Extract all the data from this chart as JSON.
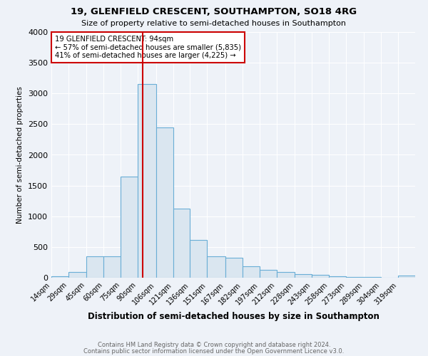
{
  "title1": "19, GLENFIELD CRESCENT, SOUTHAMPTON, SO18 4RG",
  "title2": "Size of property relative to semi-detached houses in Southampton",
  "xlabel": "Distribution of semi-detached houses by size in Southampton",
  "ylabel": "Number of semi-detached properties",
  "annotation_title": "19 GLENFIELD CRESCENT: 94sqm",
  "annotation_line1": "← 57% of semi-detached houses are smaller (5,835)",
  "annotation_line2": "41% of semi-detached houses are larger (4,225) →",
  "footnote1": "Contains HM Land Registry data © Crown copyright and database right 2024.",
  "footnote2": "Contains public sector information licensed under the Open Government Licence v3.0.",
  "property_size": 94,
  "categories": [
    "14sqm",
    "29sqm",
    "45sqm",
    "60sqm",
    "75sqm",
    "90sqm",
    "106sqm",
    "121sqm",
    "136sqm",
    "151sqm",
    "167sqm",
    "182sqm",
    "197sqm",
    "212sqm",
    "228sqm",
    "243sqm",
    "258sqm",
    "273sqm",
    "289sqm",
    "304sqm",
    "319sqm"
  ],
  "bin_edges": [
    14,
    29,
    45,
    60,
    75,
    90,
    106,
    121,
    136,
    151,
    167,
    182,
    197,
    212,
    228,
    243,
    258,
    273,
    289,
    304,
    319,
    334
  ],
  "values": [
    20,
    90,
    350,
    350,
    1650,
    3150,
    2450,
    1130,
    620,
    350,
    330,
    190,
    130,
    90,
    60,
    50,
    25,
    12,
    8,
    5,
    30
  ],
  "bar_color": "#dae6f0",
  "bar_edge_color": "#6aaed6",
  "red_line_color": "#cc0000",
  "annotation_box_color": "#cc0000",
  "background_color": "#eef2f8",
  "grid_color": "#ffffff",
  "ylim": [
    0,
    4000
  ],
  "yticks": [
    0,
    500,
    1000,
    1500,
    2000,
    2500,
    3000,
    3500,
    4000
  ]
}
